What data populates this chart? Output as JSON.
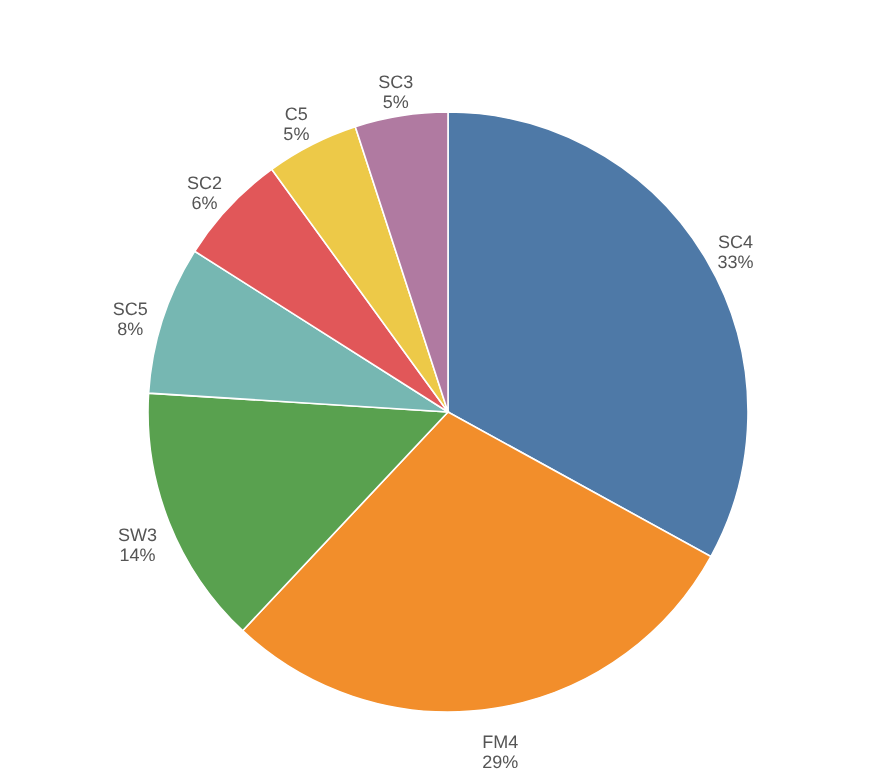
{
  "chart_data": {
    "type": "pie",
    "categories": [
      "SC4",
      "FM4",
      "SW3",
      "SC5",
      "SC2",
      "C5",
      "SC3"
    ],
    "values": [
      33,
      29,
      14,
      8,
      6,
      5,
      5
    ],
    "value_labels": [
      "33%",
      "29%",
      "14%",
      "8%",
      "6%",
      "5%",
      "5%"
    ],
    "colors": [
      "#4e79a7",
      "#f28e2b",
      "#59a14f",
      "#76b7b2",
      "#e15759",
      "#edc948",
      "#b07aa1"
    ]
  }
}
